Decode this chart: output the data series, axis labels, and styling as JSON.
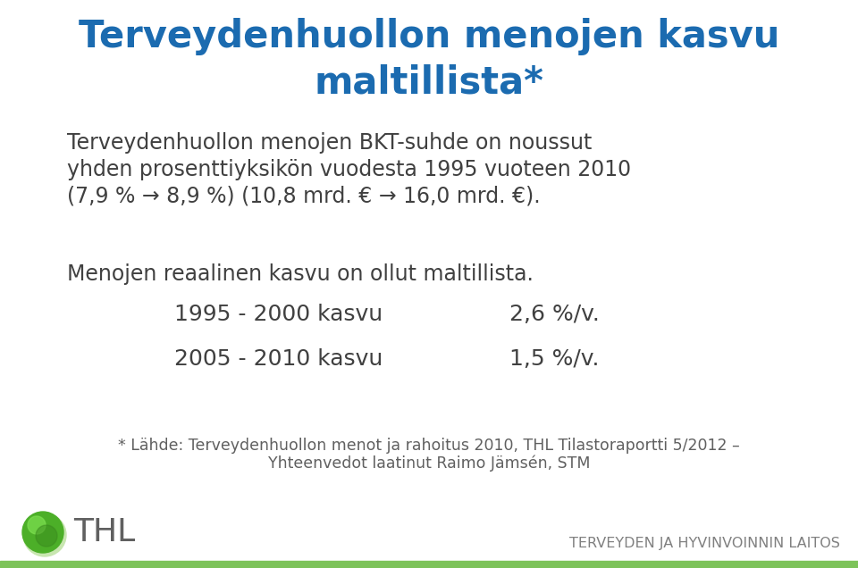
{
  "title_line1": "Terveydenhuollon menojen kasvu",
  "title_line2": "maltillista*",
  "title_color": "#1B6BB0",
  "title_fontsize": 30,
  "body_text_1a": "Terveydenhuollon menojen BKT-suhde on noussut",
  "body_text_1b": "yhden prosenttiyksikön vuodesta 1995 vuoteen 2010",
  "body_text_1c": "(7,9 % → 8,9 %) (10,8 mrd. € → 16,0 mrd. €).",
  "body_text_2": "Menojen reaalinen kasvu on ollut maltillista.",
  "row1_left": "1995 - 2000 kasvu",
  "row1_right": "2,6 %/v.",
  "row2_left": "2005 - 2010 kasvu",
  "row2_right": "1,5 %/v.",
  "footnote_line1": "* Lähde: Terveydenhuollon menot ja rahoitus 2010, THL Tilastoraportti 5/2012 –",
  "footnote_line2": "Yhteenvedot laatinut Raimo Jämsén, STM",
  "thl_text": "THL",
  "tagline": "TERVEYDEN JA HYVINVOINNIN LAITOS",
  "body_color": "#404040",
  "footnote_color": "#606060",
  "tagline_color": "#808080",
  "background_color": "#ffffff",
  "bottom_bar_color": "#7dc35a",
  "thl_text_color": "#606060",
  "body_fontsize": 17,
  "row_fontsize": 18,
  "footnote_fontsize": 12.5,
  "tagline_fontsize": 11.5,
  "thl_fontsize": 26
}
